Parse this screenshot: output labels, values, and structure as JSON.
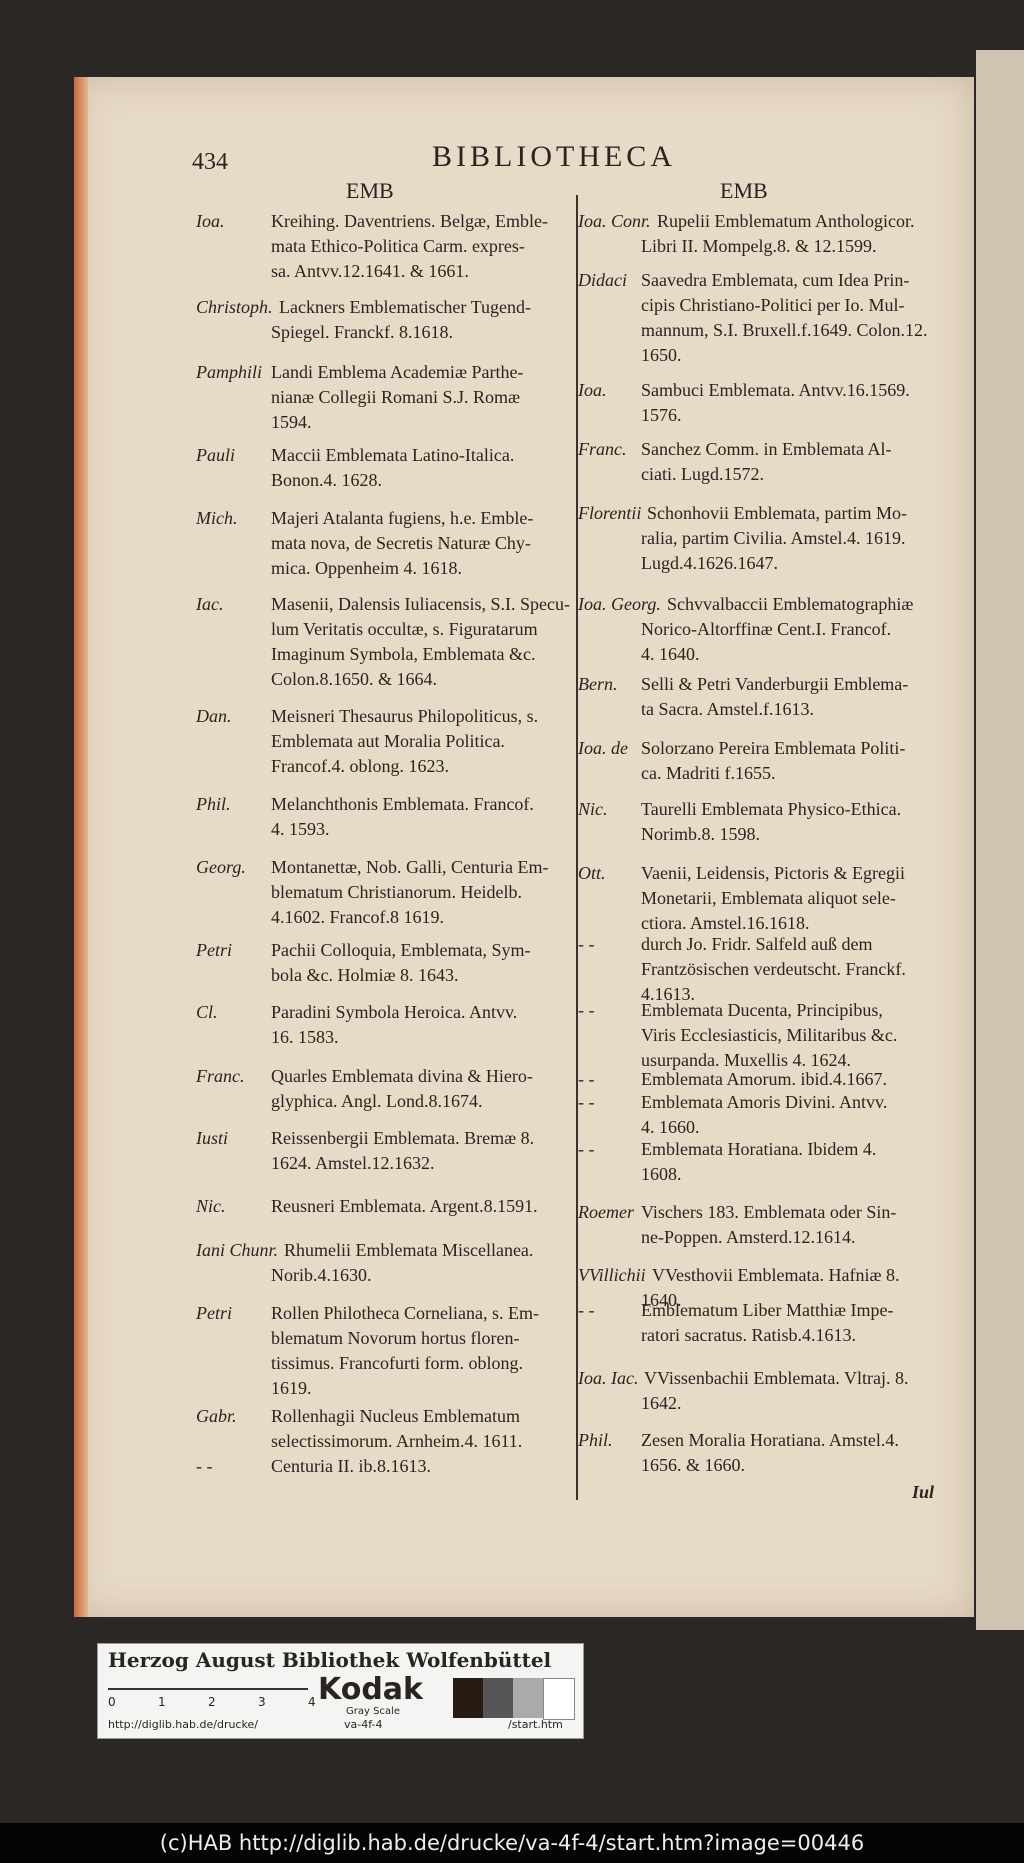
{
  "header": {
    "page_number": "434",
    "title": "BIBLIOTHECA",
    "left_heading": "EMB",
    "right_heading": "EMB"
  },
  "left_column": {
    "entries": [
      {
        "name": "Ioa.",
        "lines": [
          "Kreihing. Daventriens. Belgæ, Emble-",
          "mata Ethico-Politica Carm. expres-",
          "sa. Antvv.12.1641. & 1661."
        ]
      },
      {
        "name": "Christoph.",
        "lines": [
          "Lackners Emblematischer Tugend-",
          "Spiegel. Franckf. 8.1618."
        ]
      },
      {
        "name": "Pamphili",
        "lines": [
          "Landi Emblema Academiæ Parthe-",
          "nianæ Collegii Romani S.J. Romæ",
          "1594."
        ]
      },
      {
        "name": "Pauli",
        "lines": [
          "Maccii Emblemata Latino-Italica.",
          "Bonon.4. 1628."
        ]
      },
      {
        "name": "Mich.",
        "lines": [
          "Majeri Atalanta fugiens, h.e. Emble-",
          "mata nova, de Secretis Naturæ Chy-",
          "mica. Oppenheim 4. 1618."
        ]
      },
      {
        "name": "Iac.",
        "lines": [
          "Masenii, Dalensis Iuliacensis, S.I. Specu-",
          "lum Veritatis occultæ, s. Figuratarum",
          "Imaginum Symbola, Emblemata &c.",
          "Colon.8.1650. & 1664."
        ]
      },
      {
        "name": "Dan.",
        "lines": [
          "Meisneri Thesaurus Philopoliticus, s.",
          "Emblemata aut Moralia Politica.",
          "Francof.4. oblong. 1623."
        ]
      },
      {
        "name": "Phil.",
        "lines": [
          "Melanchthonis Emblemata. Francof.",
          "4. 1593."
        ]
      },
      {
        "name": "Georg.",
        "lines": [
          "Montanettæ, Nob. Galli, Centuria Em-",
          "blematum Christianorum. Heidelb.",
          "4.1602. Francof.8 1619."
        ]
      },
      {
        "name": "Petri",
        "lines": [
          "Pachii Colloquia, Emblemata, Sym-",
          "bola &c. Holmiæ 8. 1643."
        ]
      },
      {
        "name": "Cl.",
        "lines": [
          "Paradini Symbola Heroica. Antvv.",
          "16. 1583."
        ]
      },
      {
        "name": "Franc.",
        "lines": [
          "Quarles Emblemata divina & Hiero-",
          "glyphica. Angl. Lond.8.1674."
        ]
      },
      {
        "name": "Iusti",
        "lines": [
          "Reissenbergii Emblemata. Bremæ 8.",
          "1624. Amstel.12.1632."
        ]
      },
      {
        "name": "Nic.",
        "lines": [
          "Reusneri Emblemata. Argent.8.1591."
        ]
      },
      {
        "name": "Iani Chunr.",
        "lines": [
          "Rhumelii Emblemata Miscellanea.",
          "Norib.4.1630."
        ]
      },
      {
        "name": "Petri",
        "lines": [
          "Rollen Philotheca Corneliana, s. Em-",
          "blematum Novorum hortus floren-",
          "tissimus. Francofurti form. oblong.",
          "1619."
        ]
      },
      {
        "name": "Gabr.",
        "lines": [
          "Rollenhagii Nucleus Emblematum",
          "selectissimorum. Arnheim.4. 1611."
        ]
      },
      {
        "name": "- -",
        "lines": [
          "Centuria II. ib.8.1613."
        ]
      }
    ]
  },
  "right_column": {
    "entries": [
      {
        "name": "Ioa. Conr.",
        "lines": [
          "Rupelii Emblematum Anthologicor.",
          "Libri II. Mompelg.8. & 12.1599."
        ]
      },
      {
        "name": "Didaci",
        "lines": [
          "Saavedra Emblemata, cum Idea Prin-",
          "cipis Christiano-Politici per Io. Mul-",
          "mannum, S.I. Bruxell.f.1649. Colon.12.",
          "1650."
        ]
      },
      {
        "name": "Ioa.",
        "lines": [
          "Sambuci Emblemata. Antvv.16.1569.",
          "1576."
        ]
      },
      {
        "name": "Franc.",
        "lines": [
          "Sanchez Comm. in Emblemata Al-",
          "ciati. Lugd.1572."
        ]
      },
      {
        "name": "Florentii",
        "lines": [
          "Schonhovii Emblemata, partim Mo-",
          "ralia, partim Civilia. Amstel.4. 1619.",
          "Lugd.4.1626.1647."
        ]
      },
      {
        "name": "Ioa. Georg.",
        "lines": [
          "Schvvalbaccii Emblematographiæ",
          "Norico-Altorffinæ Cent.I. Francof.",
          "4. 1640."
        ]
      },
      {
        "name": "Bern.",
        "lines": [
          "Selli & Petri Vanderburgii Emblema-",
          "ta Sacra. Amstel.f.1613."
        ]
      },
      {
        "name": "Ioa. de",
        "lines": [
          "Solorzano Pereira Emblemata Politi-",
          "ca. Madriti f.1655."
        ]
      },
      {
        "name": "Nic.",
        "lines": [
          "Taurelli Emblemata Physico-Ethica.",
          "Norimb.8. 1598."
        ]
      },
      {
        "name": "Ott.",
        "lines": [
          "Vaenii, Leidensis, Pictoris & Egregii",
          "Monetarii, Emblemata aliquot sele-",
          "ctiora. Amstel.16.1618."
        ]
      },
      {
        "name": "- -",
        "lines": [
          "durch Jo. Fridr. Salfeld auß dem",
          "Frantzösischen verdeutscht. Franckf.",
          "4.1613."
        ]
      },
      {
        "name": "- -",
        "lines": [
          "Emblemata Ducenta, Principibus,",
          "Viris Ecclesiasticis, Militaribus &c.",
          "usurpanda. Muxellis 4. 1624."
        ]
      },
      {
        "name": "- -",
        "lines": [
          "Emblemata Amorum. ibid.4.1667."
        ]
      },
      {
        "name": "- -",
        "lines": [
          "Emblemata Amoris Divini. Antvv.",
          "4. 1660."
        ]
      },
      {
        "name": "- -",
        "lines": [
          "Emblemata Horatiana. Ibidem 4.",
          "1608."
        ]
      },
      {
        "name": "Roemer",
        "lines": [
          "Vischers 183. Emblemata oder Sin-",
          "ne-Poppen. Amsterd.12.1614."
        ]
      },
      {
        "name": "VVillichii",
        "lines": [
          "VVesthovii Emblemata. Hafniæ 8.",
          "1640."
        ]
      },
      {
        "name": "- -",
        "lines": [
          "Emblematum Liber Matthiæ Impe-",
          "ratori sacratus. Ratisb.4.1613."
        ]
      },
      {
        "name": "Ioa. Iac.",
        "lines": [
          "VVissenbachii Emblemata. Vltraj. 8.",
          "1642."
        ]
      },
      {
        "name": "Phil.",
        "lines": [
          "Zesen Moralia Horatiana. Amstel.4.",
          "1656. & 1660."
        ]
      }
    ]
  },
  "catchword": "Iul",
  "color_card": {
    "title": "Herzog August Bibliothek Wolfenbüttel",
    "brand": "Kodak",
    "subtitle": "Gray Scale",
    "scale": [
      "0",
      "1",
      "2",
      "3",
      "4"
    ],
    "url_left": "http://diglib.hab.de/drucke/",
    "url_middle": "va-4f-4",
    "url_right": "/start.htm"
  },
  "footer": "(c)HAB http://diglib.hab.de/drucke/va-4f-4/start.htm?image=00446"
}
